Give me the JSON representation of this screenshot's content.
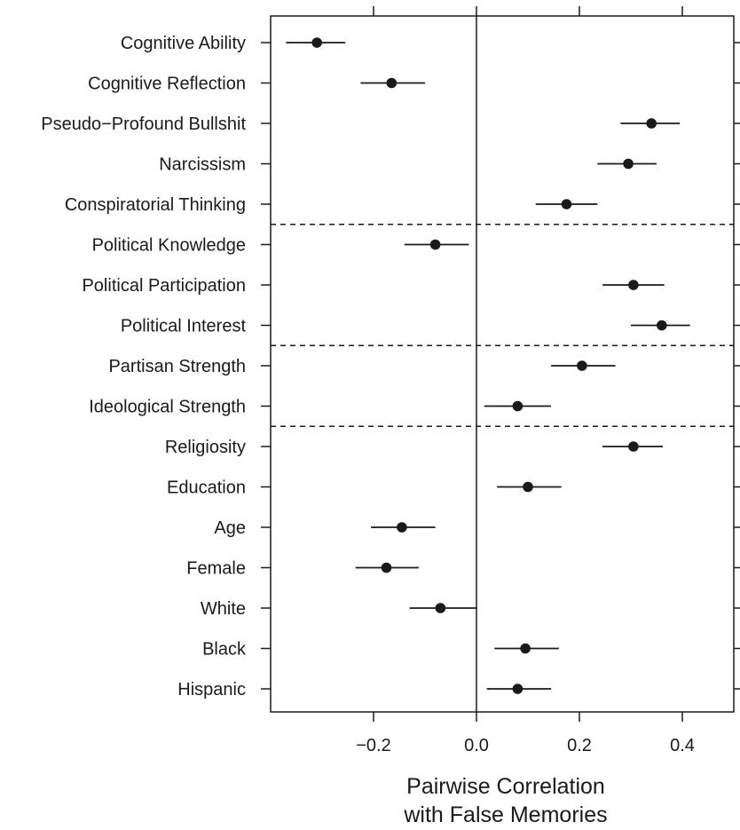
{
  "chart_data": {
    "type": "scatter",
    "subtype": "dot-and-whisker",
    "categories": [
      "Cognitive Ability",
      "Cognitive Reflection",
      "Pseudo−Profound Bullshit",
      "Narcissism",
      "Conspiratorial Thinking",
      "Political Knowledge",
      "Political Participation",
      "Political Interest",
      "Partisan Strength",
      "Ideological Strength",
      "Religiosity",
      "Education",
      "Age",
      "Female",
      "White",
      "Black",
      "Hispanic"
    ],
    "series": [
      {
        "estimate": [
          -0.31,
          -0.165,
          0.34,
          0.295,
          0.175,
          -0.08,
          0.305,
          0.36,
          0.205,
          0.08,
          0.305,
          0.1,
          -0.145,
          -0.175,
          -0.07,
          0.095,
          0.08
        ],
        "lower": [
          -0.37,
          -0.225,
          0.28,
          0.235,
          0.115,
          -0.14,
          0.245,
          0.3,
          0.145,
          0.015,
          0.245,
          0.04,
          -0.205,
          -0.235,
          -0.13,
          0.035,
          0.02
        ],
        "upper": [
          -0.255,
          -0.1,
          0.395,
          0.35,
          0.235,
          -0.015,
          0.365,
          0.415,
          0.27,
          0.145,
          0.362,
          0.165,
          -0.08,
          -0.112,
          0.0,
          0.16,
          0.145
        ]
      }
    ],
    "group_separators_after": [
      "Conspiratorial Thinking",
      "Political Interest",
      "Ideological Strength"
    ],
    "xlabel": [
      "Pairwise Correlation",
      "with False Memories"
    ],
    "xlim": [
      -0.4,
      0.5
    ],
    "xticks": [
      -0.2,
      0.0,
      0.2,
      0.4
    ],
    "xtick_labels": [
      "−0.2",
      "0.0",
      "0.2",
      "0.4"
    ],
    "top_ticks": [
      -0.2,
      0.0,
      0.2,
      0.4
    ],
    "reference_line": 0,
    "grid": false,
    "legend": "none",
    "colors": {
      "points": "#1a1a1a",
      "lines": "#1a1a1a",
      "separators": "#1a1a1a"
    }
  }
}
